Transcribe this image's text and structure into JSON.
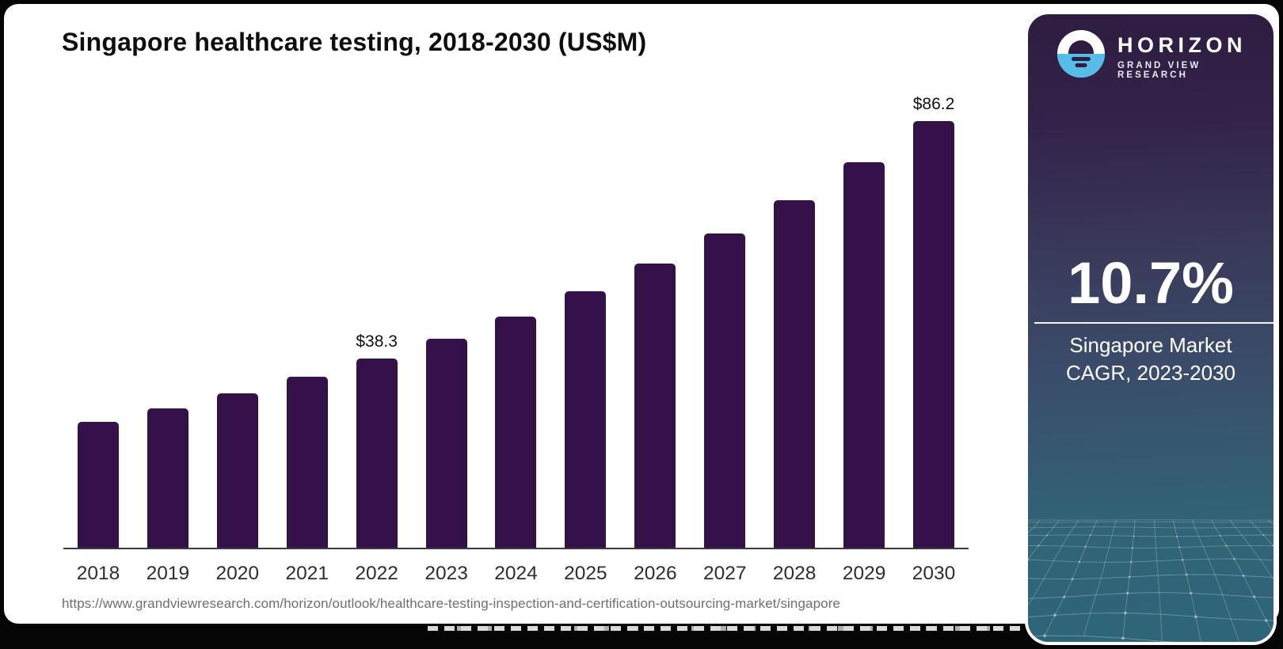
{
  "card": {
    "title": "Singapore healthcare testing, 2018-2030 (US$M)",
    "source_url": "https://www.grandviewresearch.com/horizon/outlook/healthcare-testing-inspection-and-certification-outsourcing-market/singapore"
  },
  "chart_data": {
    "type": "bar",
    "title": "Singapore healthcare testing, 2018-2030 (US$M)",
    "unit": "US$M",
    "categories": [
      "2018",
      "2019",
      "2020",
      "2021",
      "2022",
      "2023",
      "2024",
      "2025",
      "2026",
      "2027",
      "2028",
      "2029",
      "2030"
    ],
    "values": [
      25.4,
      28.1,
      31.2,
      34.6,
      38.3,
      42.3,
      46.8,
      51.8,
      57.4,
      63.5,
      70.3,
      77.9,
      86.2
    ],
    "data_labels": {
      "2022": "$38.3",
      "2030": "$86.2"
    },
    "xlabel": "",
    "ylabel": "",
    "ylim": [
      0,
      90
    ],
    "grid": false,
    "legend": false
  },
  "sidebar": {
    "brand_name": "HORIZON",
    "brand_subtitle": "GRAND VIEW RESEARCH",
    "stat_value": "10.7%",
    "stat_caption_line1": "Singapore Market",
    "stat_caption_line2": "CAGR, 2023-2030"
  },
  "colors": {
    "bar": "#341149",
    "axis": "#3a3a3a",
    "title_text": "#0e0e0e",
    "source_text": "#6e6e6e",
    "sidebar_top": "#2f1d40",
    "sidebar_mid": "#3a4e6b",
    "sidebar_bottom": "#2e6578",
    "logo_blue": "#56bde9",
    "stat_text": "#ffffff"
  }
}
